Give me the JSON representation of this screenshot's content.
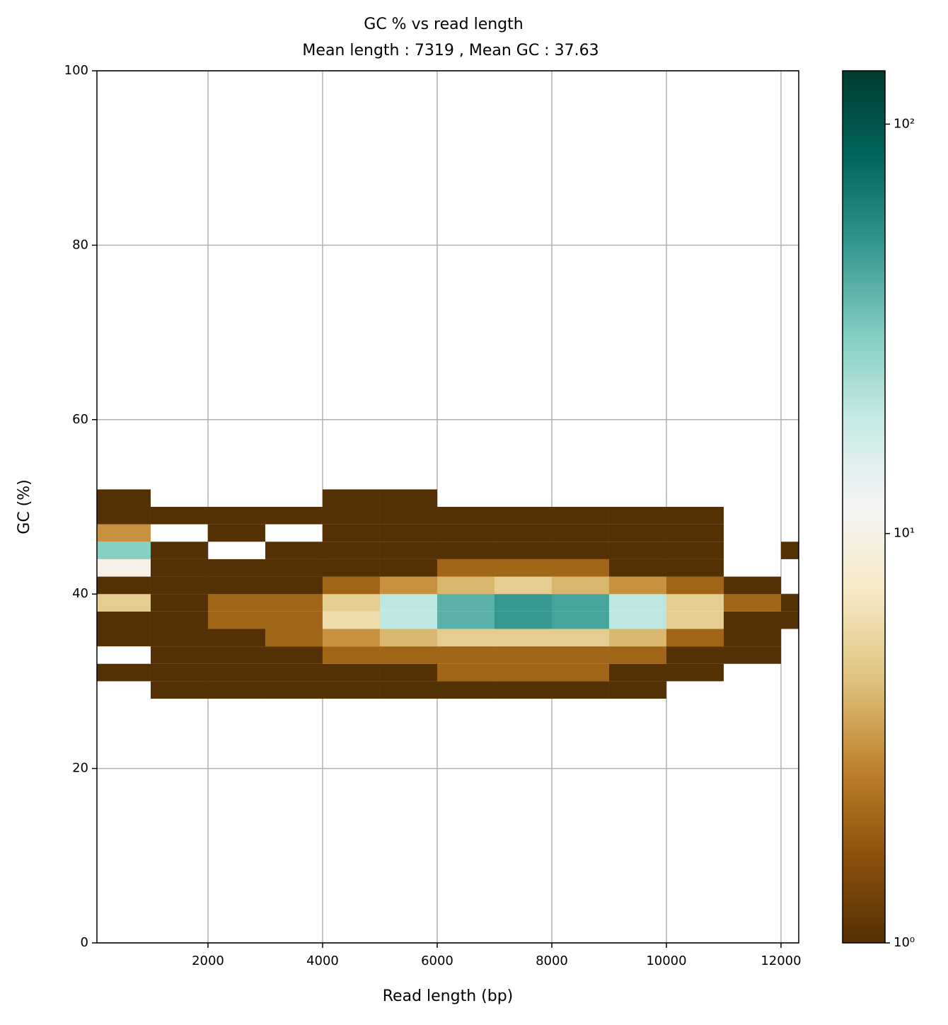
{
  "chart_data": {
    "type": "heatmap",
    "title": "GC % vs read length",
    "subtitle": "Mean length : 7319 , Mean GC : 37.63",
    "x_label": "Read length (bp)",
    "y_label": "GC (%)",
    "xlim": [
      62,
      12309
    ],
    "ylim": [
      0,
      100
    ],
    "xticks": [
      2000,
      4000,
      6000,
      8000,
      10000,
      12000
    ],
    "yticks": [
      0,
      20,
      40,
      60,
      80,
      100
    ],
    "grid": true,
    "x_bins": [
      62,
      1000,
      2000,
      3000,
      4000,
      5000,
      6000,
      7000,
      8000,
      9000,
      10000,
      11000,
      12000,
      12309
    ],
    "y_bins": [
      28,
      30,
      32,
      34,
      36,
      38,
      40,
      42,
      44,
      46,
      48,
      50,
      52
    ],
    "values": [
      [
        null,
        1,
        1,
        1,
        1,
        1,
        1,
        1,
        1,
        1,
        null,
        null,
        null
      ],
      [
        1,
        1,
        1,
        1,
        1,
        1,
        2,
        2,
        2,
        1,
        1,
        null,
        null
      ],
      [
        null,
        1,
        1,
        1,
        2,
        2,
        2,
        2,
        2,
        2,
        1,
        1,
        null
      ],
      [
        1,
        1,
        1,
        2,
        3,
        4,
        5,
        5,
        5,
        4,
        2,
        1,
        null
      ],
      [
        1,
        1,
        2,
        2,
        6,
        20,
        40,
        50,
        45,
        20,
        5,
        1,
        1
      ],
      [
        5,
        1,
        2,
        2,
        5,
        20,
        40,
        50,
        45,
        20,
        5,
        2,
        1
      ],
      [
        1,
        1,
        1,
        1,
        2,
        3,
        4,
        5,
        4,
        3,
        2,
        1,
        null
      ],
      [
        10,
        1,
        1,
        1,
        1,
        1,
        2,
        2,
        2,
        1,
        1,
        null,
        null
      ],
      [
        30,
        1,
        null,
        1,
        1,
        1,
        1,
        1,
        1,
        1,
        1,
        null,
        1
      ],
      [
        3,
        null,
        1,
        null,
        1,
        1,
        1,
        1,
        1,
        1,
        1,
        null,
        null
      ],
      [
        1,
        1,
        1,
        1,
        1,
        1,
        1,
        1,
        1,
        1,
        1,
        null,
        null
      ],
      [
        1,
        null,
        null,
        null,
        1,
        1,
        null,
        null,
        null,
        null,
        null,
        null,
        null
      ]
    ],
    "colormap": [
      "#543005",
      "#8c510a",
      "#bf812d",
      "#dfc27d",
      "#f6e8c3",
      "#f5f5f5",
      "#c7eae5",
      "#80cdc1",
      "#35978f",
      "#01665e",
      "#003c30"
    ],
    "colorbar_log": true,
    "clim": [
      1,
      135
    ],
    "colorbar_ticks": [
      {
        "value": 1,
        "label": "10⁰"
      },
      {
        "value": 10,
        "label": "10¹"
      },
      {
        "value": 100,
        "label": "10²"
      }
    ]
  }
}
